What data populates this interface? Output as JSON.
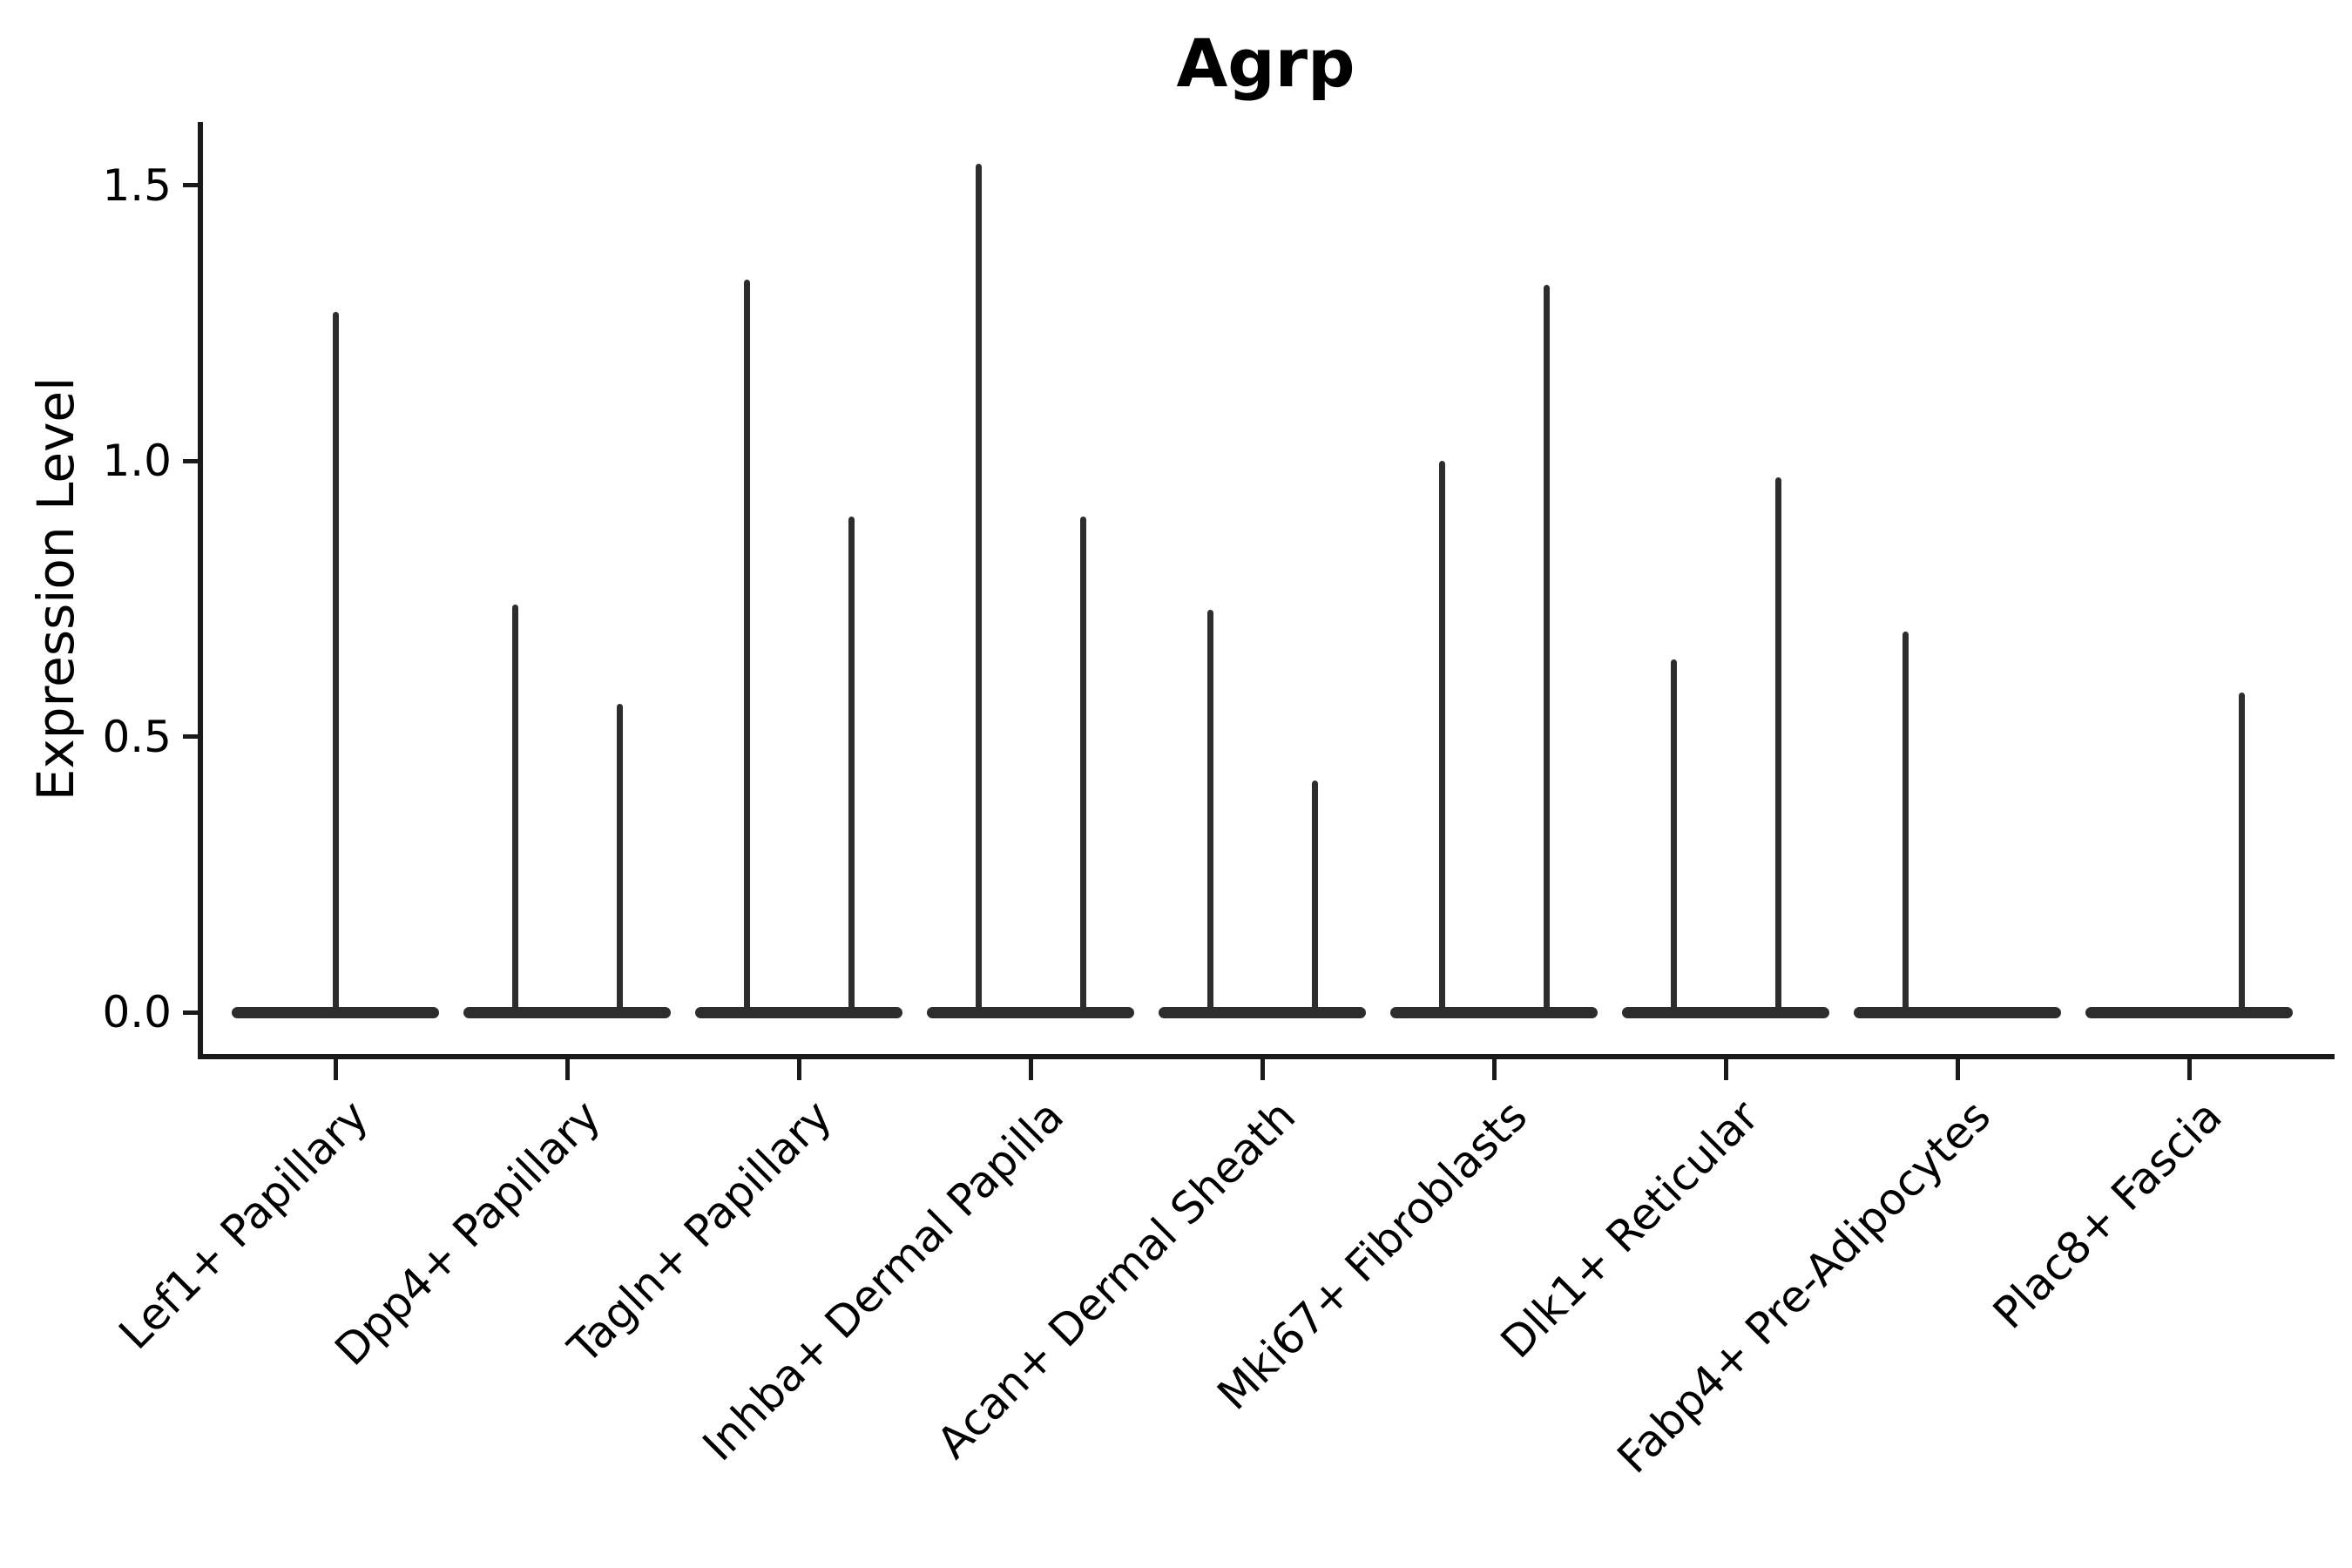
{
  "chart_data": {
    "type": "violin",
    "title": "Agrp",
    "xlabel": "",
    "ylabel": "Expression Level",
    "yticks": [
      0.0,
      0.5,
      1.0,
      1.5
    ],
    "ytick_labels": [
      "0.0",
      "0.5",
      "1.0",
      "1.5"
    ],
    "ylim": [
      -0.08,
      1.62
    ],
    "grid": false,
    "legend": "none",
    "categories": [
      "Lef1+ Papillary",
      "Dpp4+ Papillary",
      "Tagln+ Papillary",
      "Inhba+ Dermal Papilla",
      "Acan+ Dermal Sheath",
      "Mki67+ Fibroblasts",
      "Dlk1+ Reticular",
      "Fabp4+ Pre-Adipocytes",
      "Plac8+ Fascia"
    ],
    "baseline_value": 0,
    "description": "Violin plot of Agrp expression; each cluster shows a wide flat violin base at expression 0 with thin spikes rising to the maximum expression of rare expressing cells.",
    "violins": [
      {
        "category": "Lef1+ Papillary",
        "spikes": [
          {
            "side": "center",
            "max": 1.27
          }
        ]
      },
      {
        "category": "Dpp4+ Papillary",
        "spikes": [
          {
            "side": "left",
            "max": 0.74
          },
          {
            "side": "right",
            "max": 0.56
          }
        ]
      },
      {
        "category": "Tagln+ Papillary",
        "spikes": [
          {
            "side": "left",
            "max": 1.33
          },
          {
            "side": "right",
            "max": 0.9
          }
        ]
      },
      {
        "category": "Inhba+ Dermal Papilla",
        "spikes": [
          {
            "side": "left",
            "max": 1.54
          },
          {
            "side": "right",
            "max": 0.9
          }
        ]
      },
      {
        "category": "Acan+ Dermal Sheath",
        "spikes": [
          {
            "side": "left",
            "max": 0.73
          },
          {
            "side": "right",
            "max": 0.42
          }
        ]
      },
      {
        "category": "Mki67+ Fibroblasts",
        "spikes": [
          {
            "side": "left",
            "max": 1.0
          },
          {
            "side": "right",
            "max": 1.32
          }
        ]
      },
      {
        "category": "Dlk1+ Reticular",
        "spikes": [
          {
            "side": "left",
            "max": 0.64
          },
          {
            "side": "right",
            "max": 0.97
          }
        ]
      },
      {
        "category": "Fabp4+ Pre-Adipocytes",
        "spikes": [
          {
            "side": "left",
            "max": 0.69
          }
        ]
      },
      {
        "category": "Plac8+ Fascia",
        "spikes": [
          {
            "side": "right",
            "max": 0.58
          }
        ]
      }
    ],
    "colors": {
      "mark_stroke": "#2d2d2d",
      "axis": "#1a1a1a",
      "text": "#000000",
      "background": "#ffffff"
    }
  }
}
